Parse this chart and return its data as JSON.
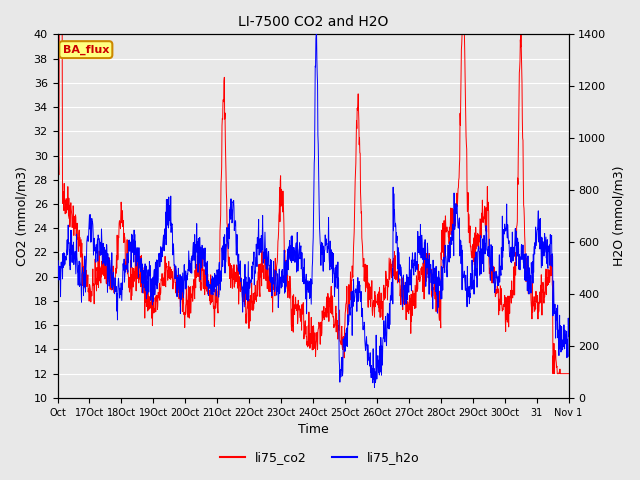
{
  "title": "LI-7500 CO2 and H2O",
  "xlabel": "Time",
  "ylabel_left": "CO2 (mmol/m3)",
  "ylabel_right": "H2O (mmol/m3)",
  "ylim_left": [
    10,
    40
  ],
  "ylim_right": [
    0,
    1400
  ],
  "yticks_left": [
    10,
    12,
    14,
    16,
    18,
    20,
    22,
    24,
    26,
    28,
    30,
    32,
    34,
    36,
    38,
    40
  ],
  "yticks_right": [
    0,
    200,
    400,
    600,
    800,
    1000,
    1200,
    1400
  ],
  "xtick_labels": [
    "Oct",
    "17Oct",
    "18Oct",
    "19Oct",
    "20Oct",
    "21Oct",
    "22Oct",
    "23Oct",
    "24Oct",
    "25Oct",
    "26Oct",
    "27Oct",
    "28Oct",
    "29Oct",
    "30Oct",
    "31",
    "Nov 1"
  ],
  "legend_labels": [
    "li75_co2",
    "li75_h2o"
  ],
  "co2_color": "#ff0000",
  "h2o_color": "#0000ff",
  "annotation_text": "BA_flux",
  "annotation_bg": "#ffff80",
  "annotation_border": "#cc8800",
  "background_color": "#e8e8e8",
  "plot_bg": "#e8e8e8",
  "grid_color": "#ffffff",
  "title_fontsize": 10,
  "axis_fontsize": 9,
  "tick_fontsize": 8
}
